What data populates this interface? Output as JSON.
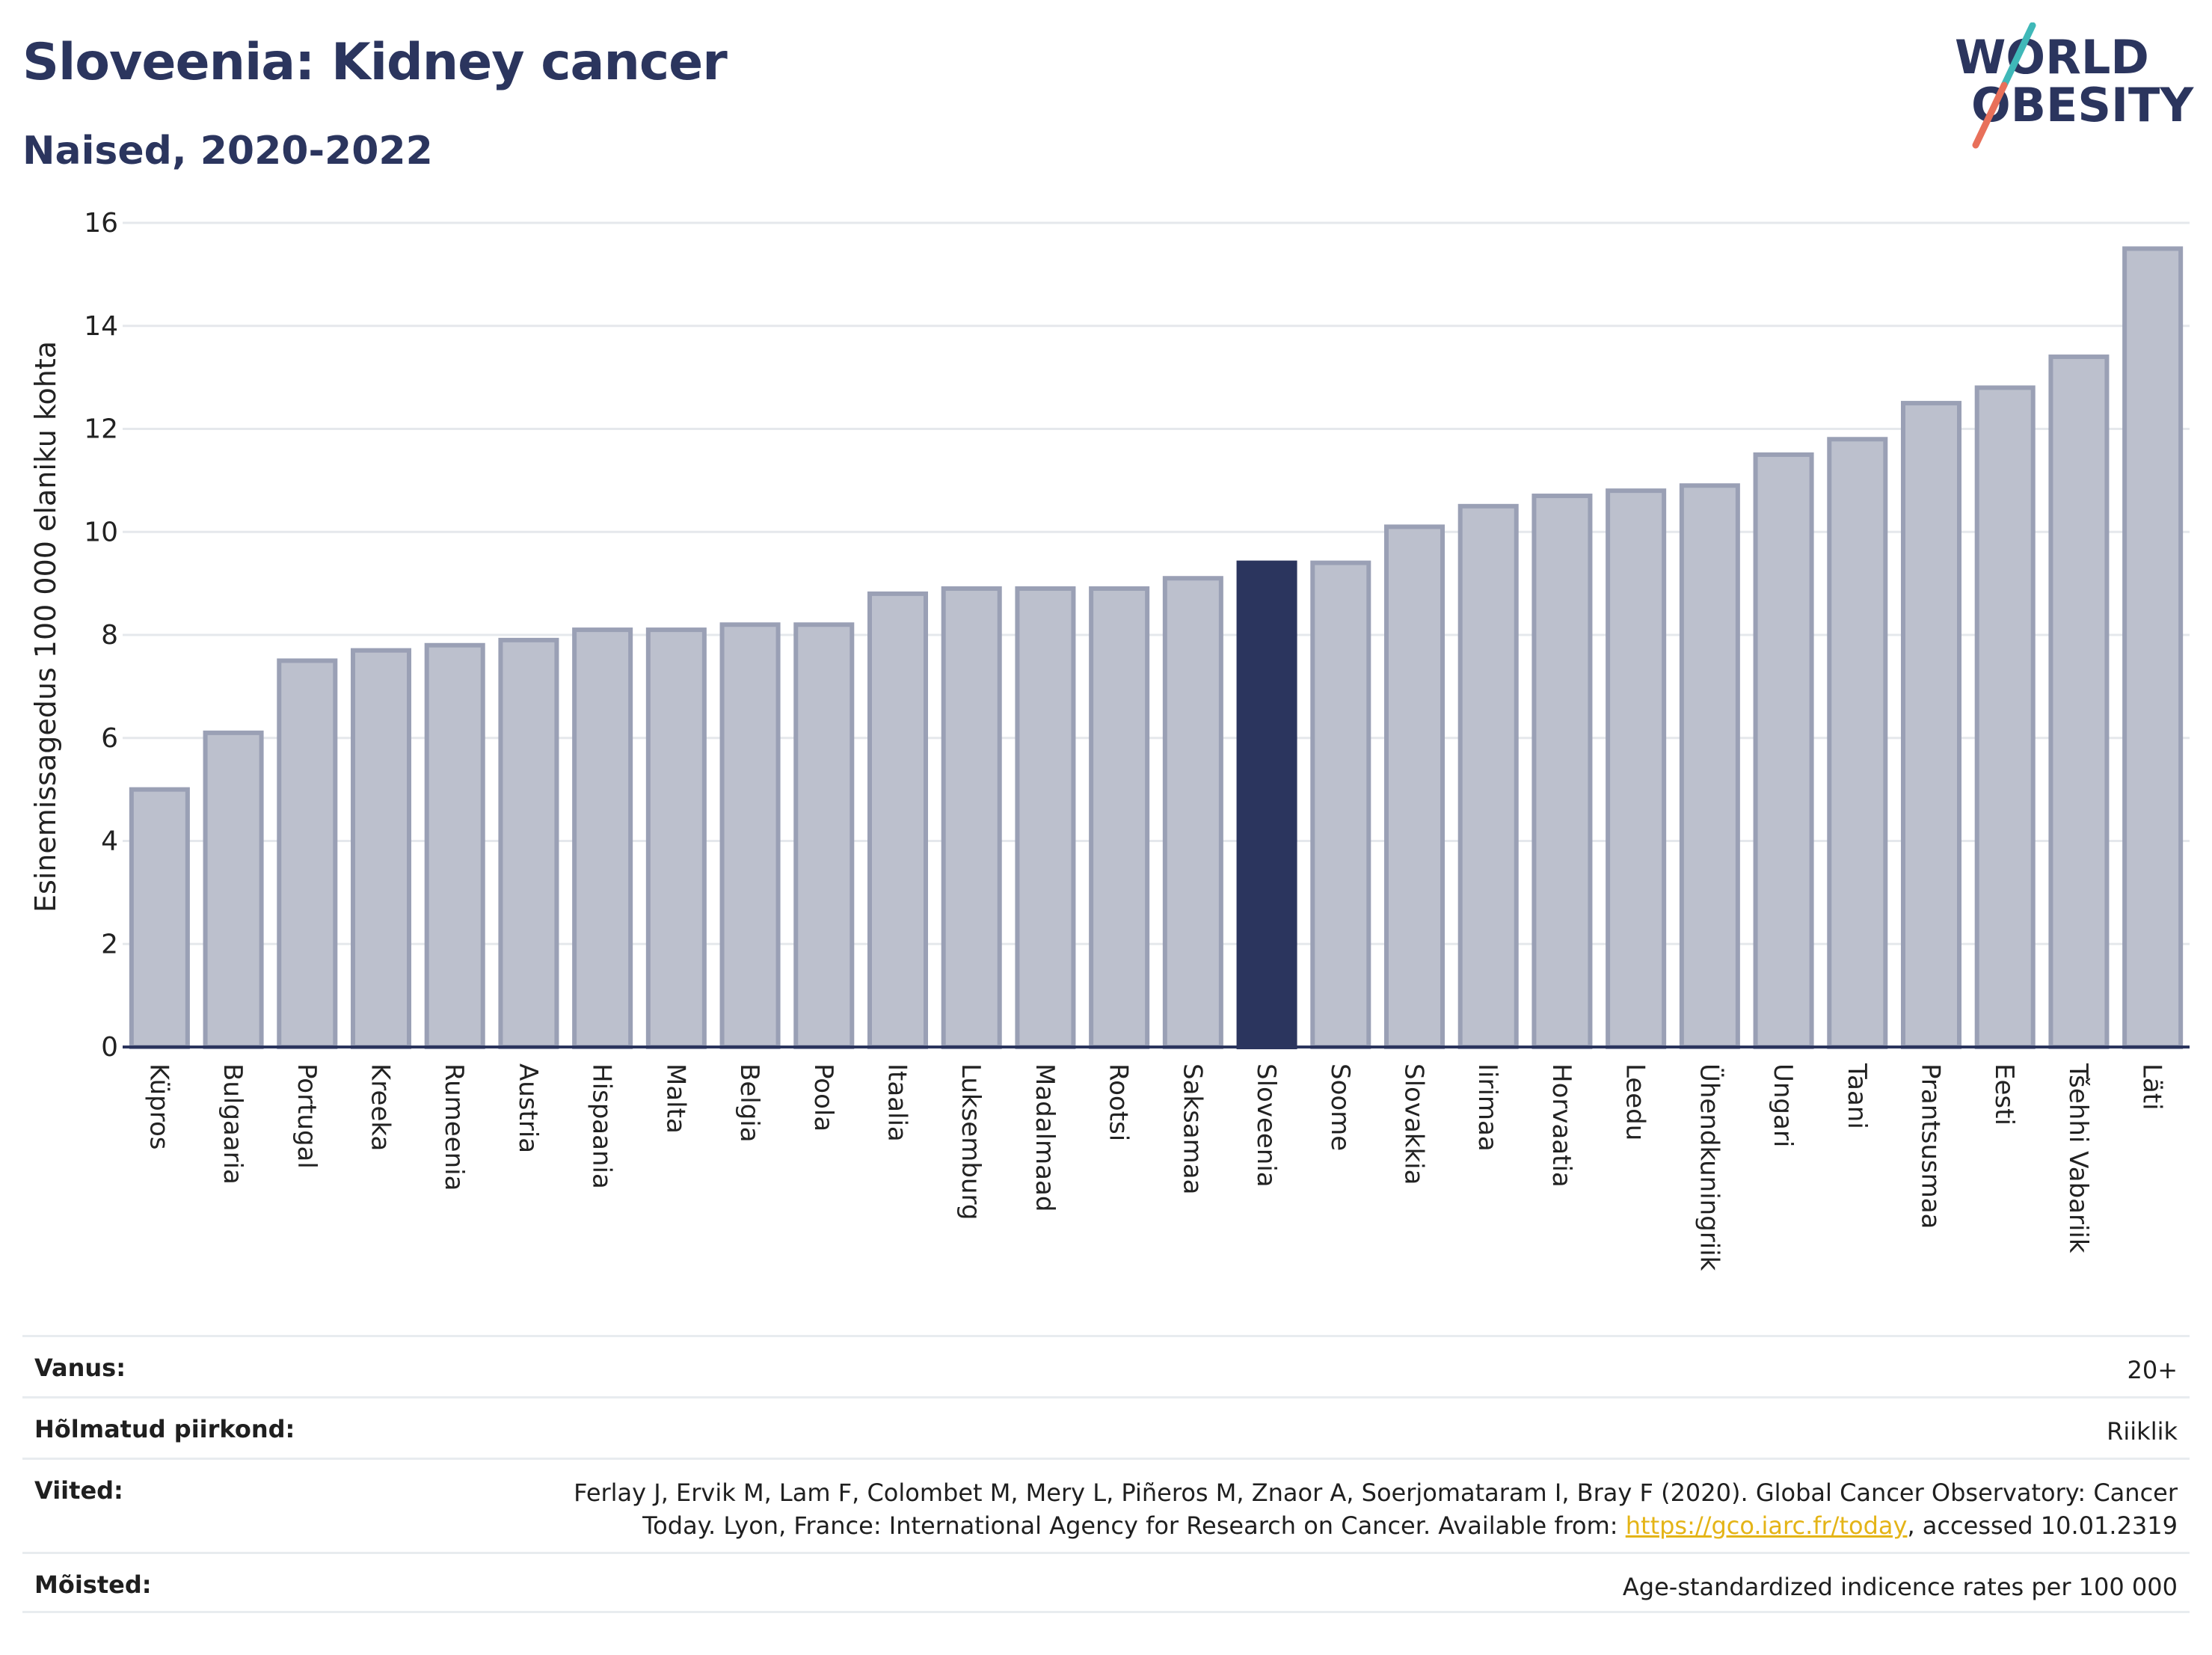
{
  "header": {
    "title": "Sloveenia: Kidney cancer",
    "subtitle": "Naised, 2020-2022"
  },
  "logo": {
    "line1": "WORLD",
    "line2": "OBESITY",
    "colors": {
      "text": "#2b355e",
      "slash_top": "#3fb8b8",
      "slash_bottom": "#e8705a"
    }
  },
  "chart_data": {
    "type": "bar",
    "title": "Sloveenia: Kidney cancer",
    "subtitle": "Naised, 2020-2022",
    "xlabel": "",
    "ylabel": "Esinemissagedus 100 000 elaniku kohta",
    "ylim": [
      0,
      16
    ],
    "yticks": [
      0,
      2,
      4,
      6,
      8,
      10,
      12,
      14,
      16
    ],
    "grid": true,
    "highlight": "Sloveenia",
    "colors": {
      "bar": "#bcc0cd",
      "bar_edge": "#9aa0b5",
      "highlight": "#2b355e",
      "grid": "#e5e8ec"
    },
    "categories": [
      "Küpros",
      "Bulgaaria",
      "Portugal",
      "Kreeka",
      "Rumeenia",
      "Austria",
      "Hispaania",
      "Malta",
      "Belgia",
      "Poola",
      "Itaalia",
      "Luksemburg",
      "Madalmaad",
      "Rootsi",
      "Saksamaa",
      "Sloveenia",
      "Soome",
      "Slovakkia",
      "Iirimaa",
      "Horvaatia",
      "Leedu",
      "Ühendkuningriik",
      "Ungari",
      "Taani",
      "Prantsusmaa",
      "Eesti",
      "Tšehhi Vabariik",
      "Läti"
    ],
    "values": [
      5.0,
      6.1,
      7.5,
      7.7,
      7.8,
      7.9,
      8.1,
      8.1,
      8.2,
      8.2,
      8.8,
      8.9,
      8.9,
      8.9,
      9.1,
      9.4,
      9.4,
      10.1,
      10.5,
      10.7,
      10.8,
      10.9,
      11.5,
      11.8,
      12.5,
      12.8,
      13.4,
      15.5
    ]
  },
  "meta": {
    "age_label": "Vanus:",
    "age_value": "20+",
    "region_label": "Hõlmatud piirkond:",
    "region_value": "Riiklik",
    "refs_label": "Viited:",
    "refs_line1": "Ferlay J, Ervik M, Lam F, Colombet M, Mery L, Piñeros M, Znaor A, Soerjomataram I, Bray F (2020). Global Cancer Observatory: Cancer",
    "refs_line2_pre": "Today. Lyon, France: International Agency for Research on Cancer. Available from: ",
    "refs_link": "https://gco.iarc.fr/today",
    "refs_line2_post": ", accessed 10.01.2319",
    "defs_label": "Mõisted:",
    "defs_value": "Age-standardized indicence rates per 100 000"
  }
}
